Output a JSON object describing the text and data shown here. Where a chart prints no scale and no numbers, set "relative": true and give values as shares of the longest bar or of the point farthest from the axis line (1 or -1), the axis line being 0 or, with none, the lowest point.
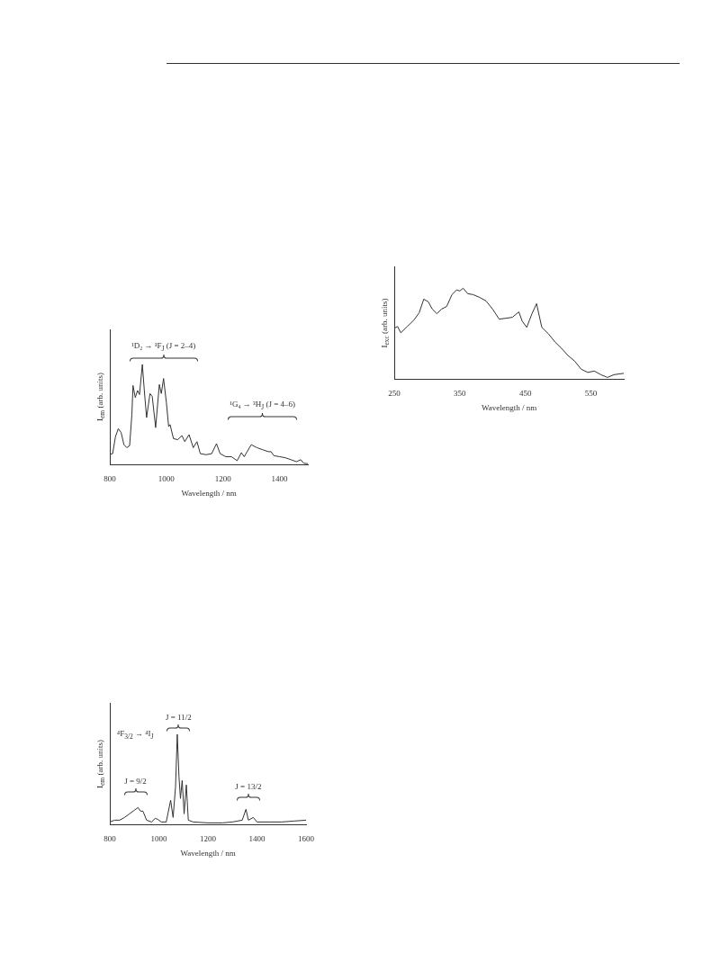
{
  "chart_data": [
    {
      "type": "line",
      "relative": true,
      "xlabel": "Wavelength / nm",
      "ylabel": "I$_{em}$ (arb. units)",
      "xlim": [
        800,
        1500
      ],
      "xticks": [
        800,
        1000,
        1200,
        1400
      ],
      "marker": "none",
      "legend": false,
      "annotations": [
        "¹D₂ → ³F$_{J}$ (J = 2–4)",
        "¹G₄ → ³H$_{J}$ (J = 4–6)"
      ],
      "series": [
        {
          "color": "#333333",
          "x": [
            800,
            810,
            820,
            830,
            840,
            850,
            860,
            870,
            878,
            882,
            890,
            898,
            905,
            915,
            922,
            930,
            942,
            950,
            962,
            975,
            982,
            990,
            1000,
            1008,
            1013,
            1025,
            1040,
            1055,
            1065,
            1080,
            1095,
            1108,
            1120,
            1140,
            1160,
            1177,
            1190,
            1210,
            1230,
            1250,
            1265,
            1275,
            1300,
            1320,
            1340,
            1360,
            1370,
            1380,
            1400,
            1420,
            1440,
            1460,
            1475,
            1485,
            1500
          ],
          "values": [
            0.105,
            0.11,
            0.28,
            0.36,
            0.32,
            0.2,
            0.17,
            0.19,
            0.5,
            0.79,
            0.67,
            0.74,
            0.7,
            1.0,
            0.74,
            0.47,
            0.71,
            0.68,
            0.37,
            0.8,
            0.71,
            0.86,
            0.62,
            0.38,
            0.4,
            0.26,
            0.25,
            0.29,
            0.23,
            0.3,
            0.17,
            0.23,
            0.11,
            0.1,
            0.11,
            0.21,
            0.11,
            0.08,
            0.08,
            0.04,
            0.12,
            0.08,
            0.2,
            0.17,
            0.15,
            0.13,
            0.13,
            0.09,
            0.08,
            0.07,
            0.05,
            0.03,
            0.05,
            0.015,
            0.01
          ]
        }
      ]
    },
    {
      "type": "line",
      "relative": true,
      "xlabel": "Wavelength / nm",
      "ylabel": "I$_{exc}$ (arb. units)",
      "xlim": [
        250,
        600
      ],
      "xticks": [
        250,
        350,
        450,
        550
      ],
      "marker": "none",
      "legend": false,
      "series": [
        {
          "color": "#333333",
          "x": [
            250,
            255,
            260,
            270,
            280,
            288,
            295,
            302,
            308,
            315,
            322,
            330,
            338,
            345,
            350,
            355,
            362,
            370,
            380,
            390,
            400,
            410,
            420,
            430,
            440,
            445,
            452,
            460,
            467,
            475,
            485,
            495,
            505,
            515,
            525,
            535,
            545,
            555,
            565,
            575,
            585,
            600
          ],
          "values": [
            0.56,
            0.58,
            0.51,
            0.58,
            0.65,
            0.73,
            0.88,
            0.85,
            0.77,
            0.72,
            0.77,
            0.8,
            0.93,
            0.98,
            0.97,
            1.0,
            0.94,
            0.93,
            0.9,
            0.86,
            0.77,
            0.66,
            0.67,
            0.68,
            0.74,
            0.64,
            0.57,
            0.72,
            0.83,
            0.57,
            0.5,
            0.41,
            0.34,
            0.26,
            0.2,
            0.11,
            0.075,
            0.09,
            0.05,
            0.02,
            0.05,
            0.065
          ]
        }
      ]
    },
    {
      "type": "line",
      "relative": true,
      "xlabel": "Wavelength / nm",
      "ylabel": "I$_{em}$ (arb. units)",
      "xlim": [
        800,
        1600
      ],
      "xticks": [
        800,
        1000,
        1200,
        1400,
        1600
      ],
      "marker": "none",
      "legend": false,
      "annotations": [
        "⁴F$_{3/2}$ → ⁴I$_{J}$",
        "J = 9/2",
        "J = 11/2",
        "J = 13/2"
      ],
      "series": [
        {
          "color": "#333333",
          "x": [
            800,
            820,
            840,
            860,
            880,
            900,
            915,
            925,
            935,
            950,
            970,
            985,
            995,
            1010,
            1030,
            1048,
            1058,
            1068,
            1075,
            1082,
            1088,
            1095,
            1103,
            1112,
            1120,
            1140,
            1200,
            1260,
            1300,
            1340,
            1355,
            1365,
            1385,
            1400,
            1450,
            1500,
            1550,
            1600
          ],
          "values": [
            0.03,
            0.05,
            0.05,
            0.08,
            0.12,
            0.16,
            0.19,
            0.15,
            0.15,
            0.05,
            0.03,
            0.07,
            0.06,
            0.03,
            0.03,
            0.27,
            0.08,
            0.42,
            1.0,
            0.53,
            0.29,
            0.49,
            0.12,
            0.44,
            0.05,
            0.03,
            0.02,
            0.02,
            0.03,
            0.05,
            0.17,
            0.05,
            0.08,
            0.03,
            0.03,
            0.03,
            0.04,
            0.05
          ]
        }
      ]
    }
  ]
}
